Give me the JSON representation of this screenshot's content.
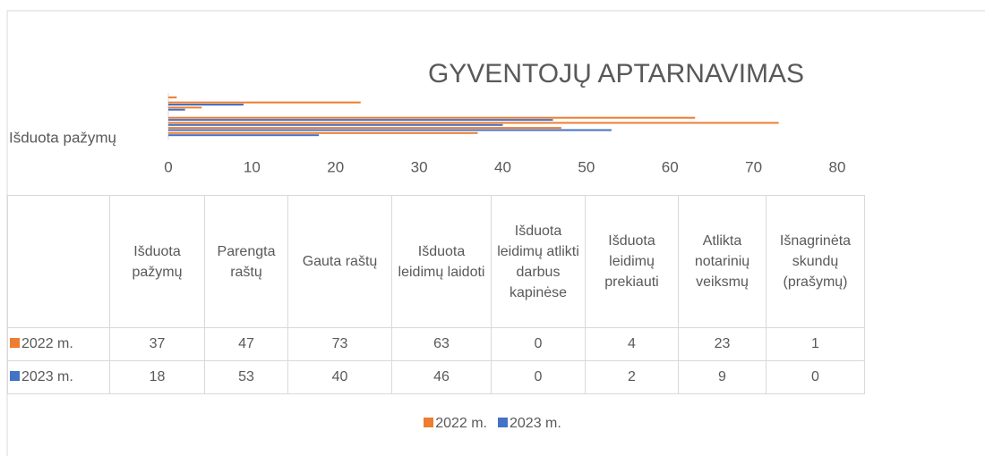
{
  "chart_data": {
    "type": "bar",
    "orientation": "horizontal",
    "title": "GYVENTOJŲ APTARNAVIMAS",
    "categories": [
      "Išduota pažymų",
      "Parengta raštų",
      "Gauta raštų",
      "Išduota leidimų laidoti",
      "Išduota leidimų atlikti darbus kapinėse",
      "Išduota leidimų prekiauti",
      "Atlikta notarinių veiksmų",
      "Išnagrinėta skundų (prašymų)"
    ],
    "series": [
      {
        "name": "2022 m.",
        "color": "#ed7d31",
        "values": [
          37,
          47,
          73,
          63,
          0,
          4,
          23,
          1
        ]
      },
      {
        "name": "2023 m.",
        "color": "#4472c4",
        "values": [
          18,
          53,
          40,
          46,
          0,
          2,
          9,
          0
        ]
      }
    ],
    "xlim": [
      0,
      80
    ],
    "xticks": [
      0,
      10,
      20,
      30,
      40,
      50,
      60,
      70,
      80
    ],
    "legend": "bottom",
    "data_table": true
  }
}
